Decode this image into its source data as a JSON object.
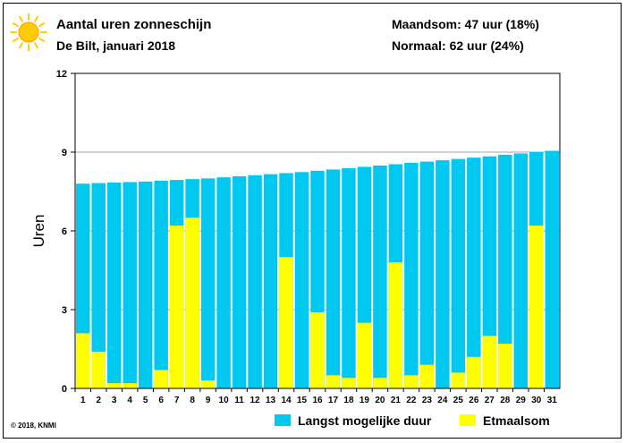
{
  "header": {
    "title": "Aantal uren zonneschijn",
    "subtitle": "De Bilt, januari 2018",
    "month_sum": "Maandsom: 47 uur (18%)",
    "normal": "Normaal: 62 uur (24%)",
    "icon": "sun-icon"
  },
  "legend": {
    "max_label": "Langst mogelijke duur",
    "sum_label": "Etmaalsom"
  },
  "copyright": "© 2018, KNMI",
  "colors": {
    "max_duration": "#00c8f0",
    "daily_sum": "#ffff00",
    "sun": "#ffcc00"
  },
  "chart_data": {
    "type": "bar",
    "title": "Aantal uren zonneschijn",
    "xlabel": "",
    "ylabel": "Uren",
    "ylim": [
      0,
      12
    ],
    "yticks": [
      0,
      3,
      6,
      9,
      12
    ],
    "grid": true,
    "categories": [
      "1",
      "2",
      "3",
      "4",
      "5",
      "6",
      "7",
      "8",
      "9",
      "10",
      "11",
      "12",
      "13",
      "14",
      "15",
      "16",
      "17",
      "18",
      "19",
      "20",
      "21",
      "22",
      "23",
      "24",
      "25",
      "26",
      "27",
      "28",
      "29",
      "30",
      "31"
    ],
    "series": [
      {
        "name": "Langst mogelijke duur",
        "values": [
          7.8,
          7.82,
          7.84,
          7.86,
          7.88,
          7.91,
          7.94,
          7.97,
          8.0,
          8.04,
          8.08,
          8.12,
          8.16,
          8.2,
          8.24,
          8.29,
          8.34,
          8.39,
          8.44,
          8.49,
          8.54,
          8.59,
          8.64,
          8.69,
          8.74,
          8.79,
          8.84,
          8.9,
          8.95,
          9.0,
          9.05
        ]
      },
      {
        "name": "Etmaalsom",
        "values": [
          2.1,
          1.4,
          0.2,
          0.2,
          0.0,
          0.7,
          6.2,
          6.5,
          0.3,
          0.0,
          0.0,
          0.0,
          0.0,
          5.0,
          0.0,
          2.9,
          0.5,
          0.4,
          2.5,
          0.4,
          4.8,
          0.5,
          0.9,
          0.0,
          0.6,
          1.2,
          2.0,
          1.7,
          0.0,
          6.2,
          0.0
        ]
      }
    ]
  }
}
